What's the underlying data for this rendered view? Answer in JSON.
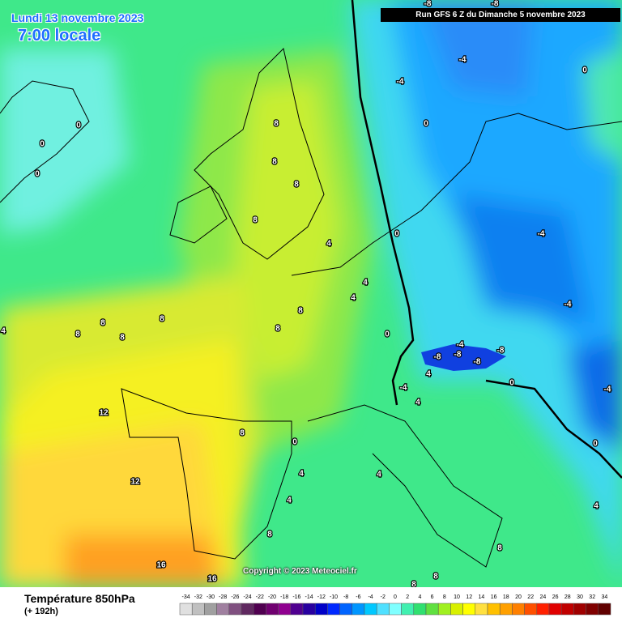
{
  "header": {
    "date": "Lundi 13 novembre 2023",
    "time": "7:00 locale",
    "run": "Run GFS 6 Z du Dimanche 5 novembre 2023"
  },
  "copyright": "Copyright © 2023 Meteociel.fr",
  "legend": {
    "title": "Température 850hPa",
    "lead": "(+ 192h)",
    "labels": [
      -34,
      -32,
      -30,
      -28,
      -26,
      -24,
      -22,
      -20,
      -18,
      -16,
      -14,
      -12,
      -10,
      -8,
      -6,
      -4,
      -2,
      0,
      2,
      4,
      6,
      8,
      10,
      12,
      14,
      16,
      18,
      20,
      22,
      24,
      26,
      28,
      30,
      32,
      34
    ],
    "colors": [
      "#e0e0e0",
      "#c0c0c0",
      "#a0a0a0",
      "#a080a0",
      "#805080",
      "#602860",
      "#500050",
      "#700070",
      "#900090",
      "#500090",
      "#2800a0",
      "#0000c8",
      "#0028ff",
      "#0064ff",
      "#0096ff",
      "#00c8ff",
      "#50e0ff",
      "#80ffff",
      "#40f0b0",
      "#30e070",
      "#60e040",
      "#a0f020",
      "#d8f000",
      "#ffff00",
      "#ffe040",
      "#ffc000",
      "#ffa000",
      "#ff8000",
      "#ff5000",
      "#ff2000",
      "#e00000",
      "#c00000",
      "#a00000",
      "#800000",
      "#600000"
    ]
  },
  "contour_labels": [
    0,
    0,
    0,
    8,
    8,
    8,
    8,
    4,
    4,
    4,
    8,
    8,
    8,
    8,
    8,
    8,
    4,
    12,
    12,
    16,
    16,
    8,
    0,
    4,
    4,
    4,
    8,
    8,
    8,
    8,
    0,
    0,
    -4,
    -4,
    -8,
    -8,
    0,
    0,
    -4,
    -4,
    -4,
    -8,
    -8,
    -8,
    -8,
    -4,
    4,
    4,
    0,
    -4,
    0,
    4
  ]
}
